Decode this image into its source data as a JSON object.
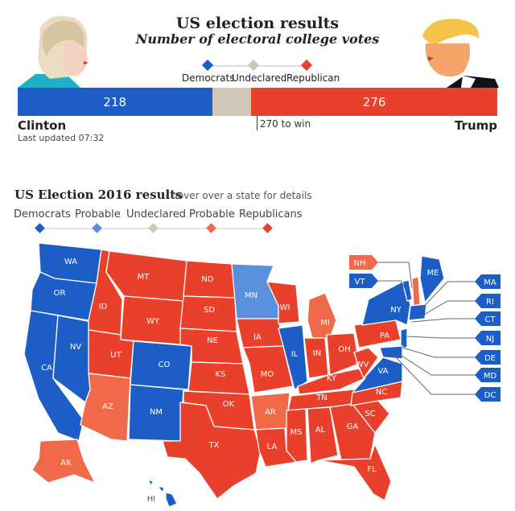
{
  "header": {
    "title": "US election results",
    "subtitle": "Number of electoral college votes"
  },
  "legend_top": [
    "Democrats",
    "Undeclared",
    "Republican"
  ],
  "colors": {
    "democrat": "#1c5ec6",
    "probable_democrat": "#5a8fdc",
    "undeclared": "#cfc8b6",
    "probable_republican": "#f06a4a",
    "republican": "#e8402a"
  },
  "chart_data": {
    "type": "bar",
    "categories": [
      "Democrats",
      "Undeclared",
      "Republican"
    ],
    "values": [
      218,
      44,
      276
    ],
    "total": 538,
    "labels": [
      "218",
      "",
      "276"
    ],
    "threshold_label": "270 to win",
    "threshold": 270
  },
  "candidates": {
    "left": "Clinton",
    "right": "Trump"
  },
  "updated": "Last updated 07:32",
  "map_section": {
    "title": "US Election 2016 results",
    "subtitle": "- hover over a state for details",
    "legend": [
      "Democrats",
      "Probable",
      "Undeclared",
      "Probable",
      "Republicans"
    ]
  },
  "states": {
    "WA": "WA",
    "OR": "OR",
    "CA": "CA",
    "NV": "NV",
    "ID": "ID",
    "MT": "MT",
    "WY": "WY",
    "UT": "UT",
    "AZ": "AZ",
    "CO": "CO",
    "NM": "NM",
    "ND": "ND",
    "SD": "SD",
    "NE": "NE",
    "KS": "KS",
    "OK": "OK",
    "TX": "TX",
    "MN": "MN",
    "IA": "IA",
    "MO": "MO",
    "AR": "AR",
    "LA": "LA",
    "WI": "WI",
    "IL": "IL",
    "MI": "MI",
    "IN": "IN",
    "OH": "OH",
    "KY": "KY",
    "TN": "TN",
    "MS": "MS",
    "AL": "AL",
    "GA": "GA",
    "FL": "FL",
    "SC": "SC",
    "NC": "NC",
    "VA": "VA",
    "WV": "WV",
    "PA": "PA",
    "NY": "NY",
    "ME": "ME",
    "AK": "AK",
    "HI": "HI"
  },
  "callouts_left": [
    "NH",
    "VT"
  ],
  "callouts_right": [
    "MA",
    "RI",
    "CT",
    "NJ",
    "DE",
    "MD",
    "DC"
  ]
}
